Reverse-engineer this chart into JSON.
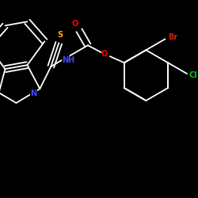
{
  "background_color": "#000000",
  "bond_color": "#ffffff",
  "atom_colors": {
    "O": "#ff0000",
    "S": "#ffaa00",
    "N": "#4444ff",
    "Cl": "#00cc00",
    "Br": "#cc2200",
    "C": "#ffffff",
    "H": "#ffffff"
  },
  "figsize": [
    2.5,
    2.5
  ],
  "dpi": 100
}
